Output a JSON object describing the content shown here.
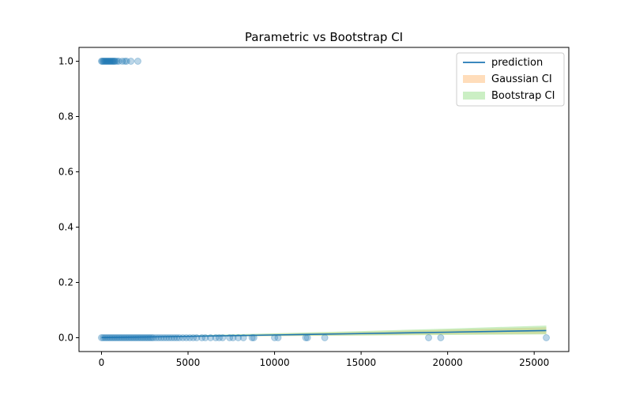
{
  "chart_data": {
    "type": "scatter",
    "title": "Parametric vs Bootstrap CI",
    "xlabel": "",
    "ylabel": "",
    "xlim": [
      -1300,
      27000
    ],
    "ylim": [
      -0.05,
      1.05
    ],
    "xticks": [
      0,
      5000,
      10000,
      15000,
      20000,
      25000
    ],
    "yticks": [
      0.0,
      0.2,
      0.4,
      0.6,
      0.8,
      1.0
    ],
    "xtick_labels": [
      "0",
      "5000",
      "10000",
      "15000",
      "20000",
      "25000"
    ],
    "ytick_labels": [
      "0.0",
      "0.2",
      "0.4",
      "0.6",
      "0.8",
      "1.0"
    ],
    "grid": false,
    "legend_position": "top-right",
    "colors": {
      "points": "#1f77b4",
      "prediction": "#1f77b4",
      "gaussian_ci": "#ffbb78",
      "bootstrap_ci": "#98df8a"
    },
    "series": [
      {
        "name": "prediction",
        "kind": "line",
        "x": [
          0,
          5000,
          10000,
          15000,
          20000,
          25700
        ],
        "y": [
          0.0005,
          0.005,
          0.01,
          0.015,
          0.02,
          0.026
        ]
      },
      {
        "name": "Gaussian CI",
        "kind": "band",
        "x": [
          0,
          5000,
          10000,
          15000,
          20000,
          25700
        ],
        "lower": [
          0.0,
          0.003,
          0.006,
          0.009,
          0.012,
          0.014
        ],
        "upper": [
          0.001,
          0.007,
          0.014,
          0.021,
          0.029,
          0.038
        ]
      },
      {
        "name": "Bootstrap CI",
        "kind": "band",
        "x": [
          0,
          5000,
          10000,
          15000,
          20000,
          25700
        ],
        "lower": [
          0.0,
          0.003,
          0.006,
          0.008,
          0.01,
          0.012
        ],
        "upper": [
          0.001,
          0.008,
          0.016,
          0.024,
          0.033,
          0.044
        ]
      },
      {
        "kind": "scatter",
        "points_y1": [
          [
            0,
            1
          ],
          [
            50,
            1
          ],
          [
            100,
            1
          ],
          [
            150,
            1
          ],
          [
            200,
            1
          ],
          [
            250,
            1
          ],
          [
            300,
            1
          ],
          [
            350,
            1
          ],
          [
            400,
            1
          ],
          [
            450,
            1
          ],
          [
            500,
            1
          ],
          [
            550,
            1
          ],
          [
            600,
            1
          ],
          [
            650,
            1
          ],
          [
            700,
            1
          ],
          [
            750,
            1
          ],
          [
            800,
            1
          ],
          [
            900,
            1
          ],
          [
            1000,
            1
          ],
          [
            1200,
            1
          ],
          [
            1350,
            1
          ],
          [
            1450,
            1
          ],
          [
            1700,
            1
          ],
          [
            2100,
            1
          ]
        ],
        "points_y0": [
          [
            0,
            0
          ],
          [
            100,
            0
          ],
          [
            200,
            0
          ],
          [
            300,
            0
          ],
          [
            400,
            0
          ],
          [
            500,
            0
          ],
          [
            600,
            0
          ],
          [
            700,
            0
          ],
          [
            800,
            0
          ],
          [
            900,
            0
          ],
          [
            1000,
            0
          ],
          [
            1100,
            0
          ],
          [
            1200,
            0
          ],
          [
            1300,
            0
          ],
          [
            1400,
            0
          ],
          [
            1500,
            0
          ],
          [
            1600,
            0
          ],
          [
            1700,
            0
          ],
          [
            1800,
            0
          ],
          [
            1900,
            0
          ],
          [
            2000,
            0
          ],
          [
            2100,
            0
          ],
          [
            2200,
            0
          ],
          [
            2300,
            0
          ],
          [
            2400,
            0
          ],
          [
            2500,
            0
          ],
          [
            2600,
            0
          ],
          [
            2700,
            0
          ],
          [
            2800,
            0
          ],
          [
            2900,
            0
          ],
          [
            3000,
            0
          ],
          [
            3150,
            0
          ],
          [
            3300,
            0
          ],
          [
            3450,
            0
          ],
          [
            3600,
            0
          ],
          [
            3750,
            0
          ],
          [
            3900,
            0
          ],
          [
            4050,
            0
          ],
          [
            4200,
            0
          ],
          [
            4350,
            0
          ],
          [
            4500,
            0
          ],
          [
            4700,
            0
          ],
          [
            4900,
            0
          ],
          [
            5100,
            0
          ],
          [
            5300,
            0
          ],
          [
            5500,
            0
          ],
          [
            5800,
            0
          ],
          [
            6000,
            0
          ],
          [
            6300,
            0
          ],
          [
            6600,
            0
          ],
          [
            6800,
            0
          ],
          [
            7000,
            0
          ],
          [
            7400,
            0
          ],
          [
            7600,
            0
          ],
          [
            7900,
            0
          ],
          [
            8200,
            0
          ],
          [
            8700,
            0
          ],
          [
            8800,
            0
          ],
          [
            10000,
            0
          ],
          [
            10200,
            0
          ],
          [
            11800,
            0
          ],
          [
            11900,
            0
          ],
          [
            12900,
            0
          ],
          [
            18900,
            0
          ],
          [
            19600,
            0
          ],
          [
            25700,
            0
          ]
        ]
      }
    ]
  }
}
